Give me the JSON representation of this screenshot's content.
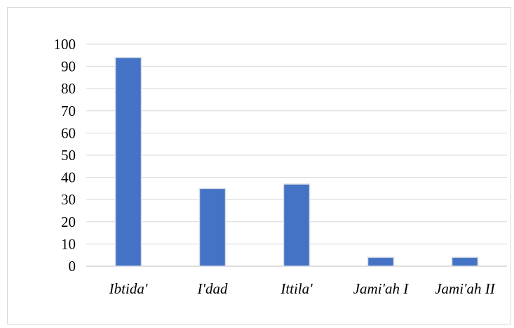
{
  "chart_data": {
    "type": "bar",
    "categories": [
      "Ibtida'",
      "I'dad",
      "Ittila'",
      "Jami'ah I",
      "Jami'ah II"
    ],
    "values": [
      94,
      35,
      37,
      4,
      4
    ],
    "ylim": [
      0,
      100
    ],
    "yticks": [
      0,
      10,
      20,
      30,
      40,
      50,
      60,
      70,
      80,
      90,
      100
    ],
    "grid": true,
    "legend": "none",
    "title": "",
    "xlabel": "",
    "ylabel": "",
    "colors": {
      "bar": "#4472c4",
      "bar_edge": "#d6dce5",
      "grid": "#d9d9d9",
      "axis": "#bfbfbf"
    }
  }
}
